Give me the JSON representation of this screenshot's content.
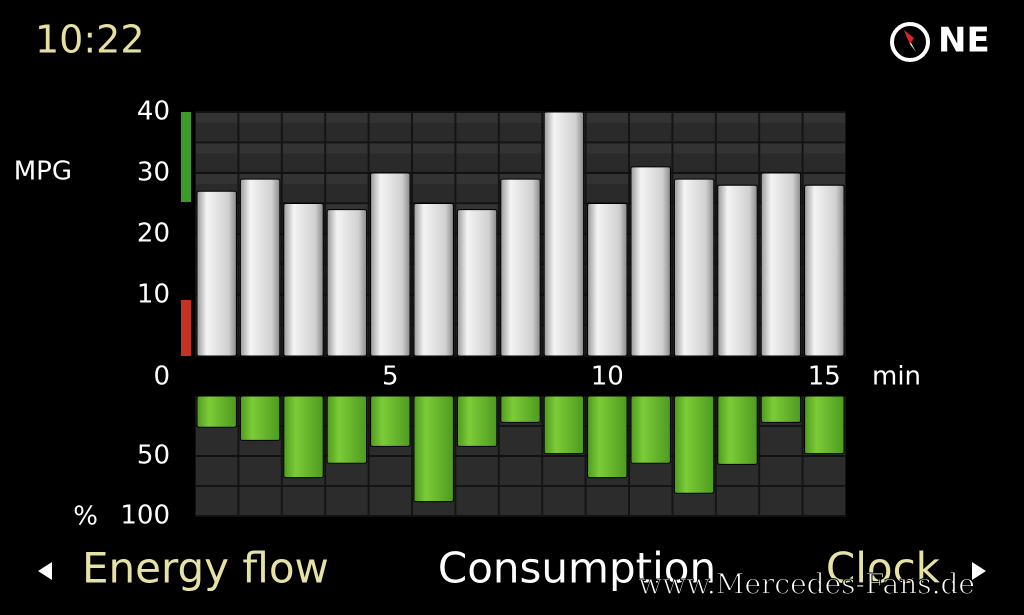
{
  "status": {
    "time": "10:22",
    "heading": "NE"
  },
  "chart_data": [
    {
      "type": "bar",
      "ylabel": "MPG",
      "xlabel": "min",
      "x": [
        1,
        2,
        3,
        4,
        5,
        6,
        7,
        8,
        9,
        10,
        11,
        12,
        13,
        14,
        15
      ],
      "values": [
        27,
        29,
        25,
        24,
        30,
        25,
        24,
        29,
        40,
        25,
        31,
        29,
        28,
        30,
        28
      ],
      "color": "#dcdcdc",
      "xlim": [
        0.5,
        15.5
      ],
      "xticks": [
        5,
        10,
        15
      ],
      "ylim": [
        0,
        40
      ],
      "yticks": [
        0,
        10,
        20,
        30,
        40
      ],
      "grid": true
    },
    {
      "type": "bar",
      "ylabel": "%",
      "x": [
        1,
        2,
        3,
        4,
        5,
        6,
        7,
        8,
        9,
        10,
        11,
        12,
        13,
        14,
        15
      ],
      "values": [
        26,
        37,
        68,
        56,
        42,
        88,
        42,
        22,
        48,
        68,
        56,
        81,
        57,
        22,
        48
      ],
      "color": "#6cbf2e",
      "xlim": [
        0.5,
        15.5
      ],
      "ylim": [
        0,
        100
      ],
      "yticks": [
        50,
        100
      ],
      "inverted": true,
      "grid": true
    }
  ],
  "nav": {
    "previous": "Energy flow",
    "current": "Consumption",
    "next": "Clock"
  },
  "watermark": "www.Mercedes-Fans.de"
}
